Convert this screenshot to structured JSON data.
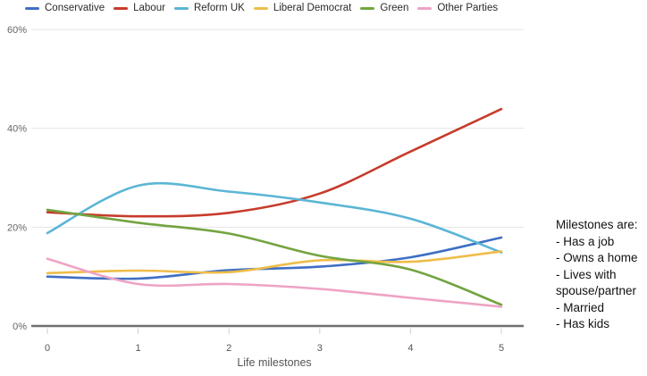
{
  "chart_data": {
    "type": "line",
    "title": "",
    "xlabel": "Life milestones",
    "ylabel": "",
    "x": [
      0,
      1,
      2,
      3,
      4,
      5
    ],
    "x_tick_labels": [
      "0",
      "1",
      "2",
      "3",
      "4",
      "5"
    ],
    "y_tick_values": [
      0,
      20,
      40,
      60
    ],
    "y_tick_labels": [
      "0%",
      "20%",
      "40%",
      "60%"
    ],
    "xlim": [
      0,
      5
    ],
    "ylim": [
      0,
      60
    ],
    "grid": true,
    "legend_position": "top",
    "series": [
      {
        "name": "Conservative",
        "color": "#3f6fc4",
        "values": [
          10.0,
          9.6,
          11.3,
          12.0,
          13.9,
          17.9
        ]
      },
      {
        "name": "Labour",
        "color": "#c73b2b",
        "values": [
          23.0,
          22.2,
          22.9,
          26.8,
          35.3,
          43.9
        ]
      },
      {
        "name": "Reform UK",
        "color": "#5bb5d5",
        "values": [
          18.8,
          28.4,
          27.2,
          25.0,
          21.7,
          14.9
        ]
      },
      {
        "name": "Liberal Democrat",
        "color": "#eebd4a",
        "values": [
          10.7,
          11.2,
          10.9,
          13.3,
          13.0,
          15.1
        ]
      },
      {
        "name": "Green",
        "color": "#73a440",
        "values": [
          23.5,
          20.9,
          18.7,
          14.2,
          11.4,
          4.3
        ]
      },
      {
        "name": "Other Parties",
        "color": "#efa3c5",
        "values": [
          13.6,
          8.5,
          8.5,
          7.5,
          5.7,
          3.9
        ]
      }
    ],
    "axis_colors": {
      "gridline": "#e4e4e4",
      "baseline": "#707070",
      "tick": "#cfcfcf",
      "y_label": "#666666",
      "x_label": "#555555"
    }
  },
  "note": {
    "title": "Milestones are:",
    "items": [
      "- Has a job",
      "- Owns a home",
      "- Lives with spouse/partner",
      "- Married",
      "- Has kids"
    ]
  }
}
